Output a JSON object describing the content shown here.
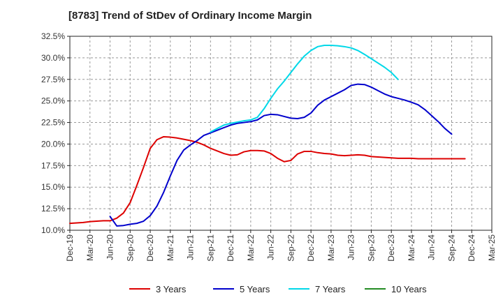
{
  "chart_data": {
    "type": "line",
    "title": "[8783]  Trend of StDev of Ordinary Income Margin",
    "xlabel": "",
    "ylabel": "",
    "x_ticks": [
      "Dec-19",
      "Mar-20",
      "Jun-20",
      "Sep-20",
      "Dec-20",
      "Mar-21",
      "Jun-21",
      "Sep-21",
      "Dec-21",
      "Mar-22",
      "Jun-22",
      "Sep-22",
      "Dec-22",
      "Mar-23",
      "Jun-23",
      "Sep-23",
      "Dec-23",
      "Mar-24",
      "Jun-24",
      "Sep-24",
      "Dec-24",
      "Mar-25"
    ],
    "y_ticks": [
      "10.0%",
      "12.5%",
      "15.0%",
      "17.5%",
      "20.0%",
      "22.5%",
      "25.0%",
      "27.5%",
      "30.0%",
      "32.5%"
    ],
    "ylim": [
      10.0,
      32.5
    ],
    "grid": true,
    "grid_style": "dashed",
    "legend_position": "bottom",
    "series": [
      {
        "name": "3 Years",
        "color": "#dd0000",
        "points": [
          [
            0,
            10.8
          ],
          [
            1,
            10.85
          ],
          [
            2,
            10.9
          ],
          [
            3,
            11.0
          ],
          [
            4,
            11.05
          ],
          [
            5,
            11.1
          ],
          [
            6,
            11.1
          ],
          [
            7,
            11.4
          ],
          [
            8,
            12.0
          ],
          [
            9,
            13.2
          ],
          [
            10,
            15.2
          ],
          [
            11,
            17.3
          ],
          [
            12,
            19.5
          ],
          [
            13,
            20.5
          ],
          [
            14,
            20.85
          ],
          [
            15,
            20.8
          ],
          [
            16,
            20.7
          ],
          [
            17,
            20.55
          ],
          [
            18,
            20.4
          ],
          [
            19,
            20.2
          ],
          [
            20,
            19.9
          ],
          [
            21,
            19.5
          ],
          [
            22,
            19.2
          ],
          [
            23,
            18.9
          ],
          [
            24,
            18.7
          ],
          [
            25,
            18.75
          ],
          [
            26,
            19.1
          ],
          [
            27,
            19.25
          ],
          [
            28,
            19.25
          ],
          [
            29,
            19.2
          ],
          [
            30,
            18.9
          ],
          [
            31,
            18.35
          ],
          [
            32,
            17.95
          ],
          [
            33,
            18.1
          ],
          [
            34,
            18.85
          ],
          [
            35,
            19.15
          ],
          [
            36,
            19.15
          ],
          [
            37,
            19.0
          ],
          [
            38,
            18.9
          ],
          [
            39,
            18.85
          ],
          [
            40,
            18.7
          ],
          [
            41,
            18.65
          ],
          [
            42,
            18.7
          ],
          [
            43,
            18.75
          ],
          [
            44,
            18.7
          ],
          [
            45,
            18.55
          ],
          [
            46,
            18.5
          ],
          [
            47,
            18.45
          ],
          [
            48,
            18.4
          ],
          [
            49,
            18.35
          ],
          [
            50,
            18.35
          ],
          [
            51,
            18.35
          ],
          [
            52,
            18.3
          ],
          [
            53,
            18.3
          ],
          [
            54,
            18.3
          ],
          [
            55,
            18.3
          ],
          [
            56,
            18.3
          ],
          [
            57,
            18.3
          ],
          [
            58,
            18.3
          ],
          [
            59,
            18.3
          ]
        ]
      },
      {
        "name": "5 Years",
        "color": "#0000cc",
        "points": [
          [
            6,
            11.6
          ],
          [
            7,
            10.5
          ],
          [
            8,
            10.55
          ],
          [
            9,
            10.7
          ],
          [
            10,
            10.8
          ],
          [
            11,
            11.05
          ],
          [
            12,
            11.7
          ],
          [
            13,
            12.8
          ],
          [
            14,
            14.4
          ],
          [
            15,
            16.3
          ],
          [
            16,
            18.1
          ],
          [
            17,
            19.3
          ],
          [
            18,
            19.9
          ],
          [
            19,
            20.4
          ],
          [
            20,
            21.0
          ],
          [
            21,
            21.3
          ],
          [
            22,
            21.6
          ],
          [
            23,
            21.9
          ],
          [
            24,
            22.2
          ],
          [
            25,
            22.4
          ],
          [
            26,
            22.5
          ],
          [
            27,
            22.6
          ],
          [
            28,
            22.8
          ],
          [
            29,
            23.3
          ],
          [
            30,
            23.45
          ],
          [
            31,
            23.4
          ],
          [
            32,
            23.2
          ],
          [
            33,
            23.0
          ],
          [
            34,
            22.95
          ],
          [
            35,
            23.1
          ],
          [
            36,
            23.6
          ],
          [
            37,
            24.5
          ],
          [
            38,
            25.1
          ],
          [
            39,
            25.5
          ],
          [
            40,
            25.9
          ],
          [
            41,
            26.3
          ],
          [
            42,
            26.8
          ],
          [
            43,
            26.95
          ],
          [
            44,
            26.9
          ],
          [
            45,
            26.6
          ],
          [
            46,
            26.2
          ],
          [
            47,
            25.8
          ],
          [
            48,
            25.5
          ],
          [
            49,
            25.3
          ],
          [
            50,
            25.1
          ],
          [
            51,
            24.85
          ],
          [
            52,
            24.55
          ],
          [
            53,
            24.0
          ],
          [
            54,
            23.3
          ],
          [
            55,
            22.6
          ],
          [
            56,
            21.8
          ],
          [
            57,
            21.15
          ]
        ]
      },
      {
        "name": "7 Years",
        "color": "#00d8e8",
        "points": [
          [
            21,
            21.4
          ],
          [
            22,
            21.8
          ],
          [
            23,
            22.2
          ],
          [
            24,
            22.4
          ],
          [
            25,
            22.55
          ],
          [
            26,
            22.7
          ],
          [
            27,
            22.8
          ],
          [
            28,
            23.1
          ],
          [
            29,
            24.1
          ],
          [
            30,
            25.3
          ],
          [
            31,
            26.4
          ],
          [
            32,
            27.3
          ],
          [
            33,
            28.3
          ],
          [
            34,
            29.3
          ],
          [
            35,
            30.2
          ],
          [
            36,
            30.85
          ],
          [
            37,
            31.3
          ],
          [
            38,
            31.45
          ],
          [
            39,
            31.45
          ],
          [
            40,
            31.4
          ],
          [
            41,
            31.3
          ],
          [
            42,
            31.15
          ],
          [
            43,
            30.85
          ],
          [
            44,
            30.4
          ],
          [
            45,
            29.9
          ],
          [
            46,
            29.4
          ],
          [
            47,
            28.9
          ],
          [
            48,
            28.3
          ],
          [
            49,
            27.5
          ]
        ]
      },
      {
        "name": "10 Years",
        "color": "#228b22",
        "points": []
      }
    ]
  }
}
